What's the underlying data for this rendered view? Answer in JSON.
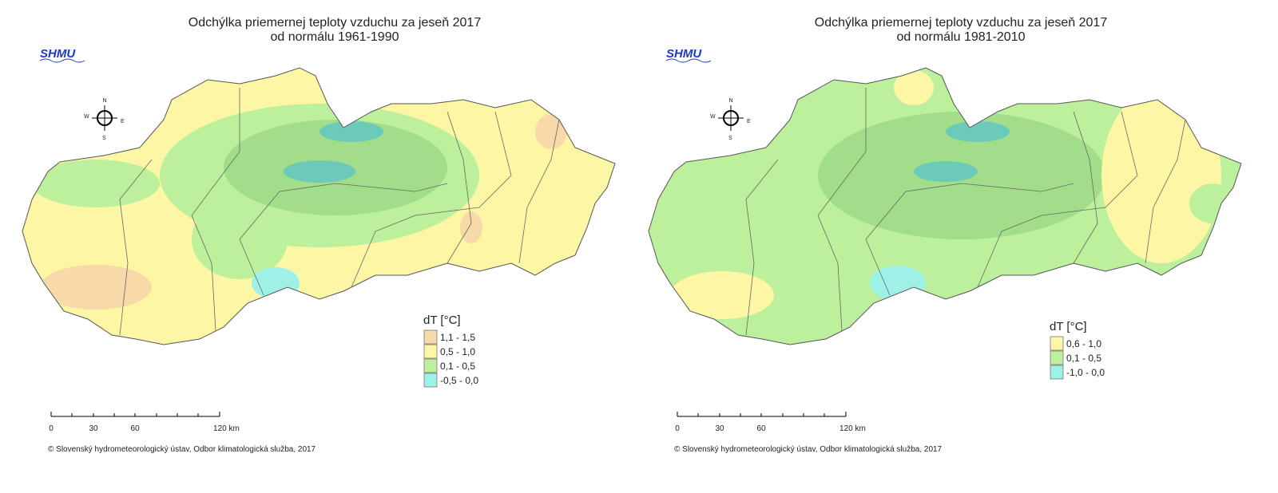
{
  "logo": "SHMU",
  "maps": [
    {
      "title": [
        "Odchýlka priemernej teploty vzduchu za jeseň 2017",
        "od normálu 1961-1990"
      ],
      "compass": [
        "N",
        "E",
        "S",
        "W"
      ],
      "legend": {
        "title": "dT [°C]",
        "items": [
          {
            "label": "1,1 - 1,5",
            "color": "#f8d9a8"
          },
          {
            "label": "0,5 - 1,0",
            "color": "#fdf6a4"
          },
          {
            "label": "0,1 - 0,5",
            "color": "#bdf09c"
          },
          {
            "label": "-0,5 - 0,0",
            "color": "#9ef1e6"
          }
        ]
      },
      "scale": [
        "0",
        "30",
        "60",
        "120 km"
      ],
      "copyright": "© Slovenský hydrometeorologický ústav, Odbor klimatologická služba, 2017"
    },
    {
      "title": [
        "Odchýlka priemernej teploty vzduchu za jeseň 2017",
        "od normálu 1981-2010"
      ],
      "compass": [
        "N",
        "E",
        "S",
        "W"
      ],
      "legend": {
        "title": "dT [°C]",
        "items": [
          {
            "label": "0,6 - 1,0",
            "color": "#fdf6a4"
          },
          {
            "label": "0,1 - 0,5",
            "color": "#bdf09c"
          },
          {
            "label": "-1,0 - 0,0",
            "color": "#9ef1e6"
          }
        ]
      },
      "scale": [
        "0",
        "30",
        "60",
        "120 km"
      ],
      "copyright": "© Slovenský hydrometeorologický ústav, Odbor klimatologická služba, 2017"
    }
  ]
}
